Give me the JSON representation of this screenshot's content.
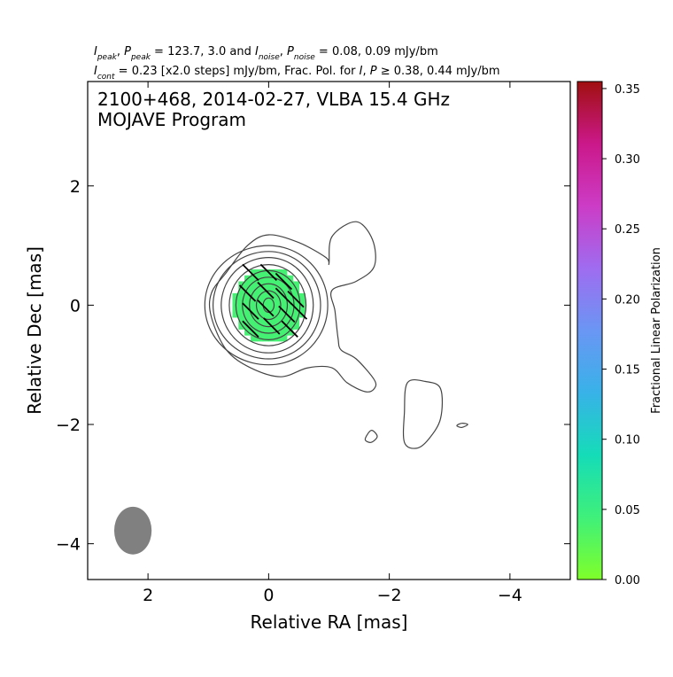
{
  "header": {
    "line1": "I_peak, P_peak = 123.7, 3.0 and I_noise, P_noise = 0.08, 0.09 mJy/bm",
    "line2": "I_cont = 0.23 [x2.0 steps] mJy/bm, Frac. Pol. for I, P ≥ 0.38, 0.44 mJy/bm",
    "i_peak": "123.7",
    "p_peak": "3.0",
    "i_noise": "0.08",
    "p_noise": "0.09",
    "i_cont": "0.23",
    "steps": "x2.0 steps",
    "frac_pol_i": "0.38",
    "frac_pol_p": "0.44",
    "unit": "mJy/bm"
  },
  "chart_data": {
    "type": "contour",
    "title": "2100+468, 2014-02-27, VLBA 15.4 GHz",
    "subtitle": "MOJAVE Program",
    "xlabel": "Relative RA [mas]",
    "ylabel": "Relative Dec [mas]",
    "xlim": [
      3.0,
      -5.0
    ],
    "ylim": [
      -4.6,
      3.75
    ],
    "x_ticks": [
      2,
      0,
      -2,
      -4
    ],
    "y_ticks": [
      2,
      0,
      -2,
      -4
    ],
    "x_tick_labels": [
      "2",
      "0",
      "−2",
      "−4"
    ],
    "y_tick_labels": [
      "2",
      "0",
      "−2",
      "−4"
    ],
    "contour_base": 0.23,
    "contour_step_factor": 2.0,
    "contour_levels_count": 10,
    "beam": {
      "x": 2.25,
      "y": -3.78,
      "major": 0.8,
      "minor": 0.62
    },
    "colorbar": {
      "label": "Fractional Linear Polarization",
      "min": 0.0,
      "max": 0.355,
      "ticks": [
        0.0,
        0.05,
        0.1,
        0.15,
        0.2,
        0.25,
        0.3,
        0.35
      ],
      "tick_labels": [
        "0.00",
        "0.05",
        "0.10",
        "0.15",
        "0.20",
        "0.25",
        "0.30",
        "0.35"
      ],
      "colors": [
        "#7fff2a",
        "#3ff07a",
        "#15dcb8",
        "#38b2e8",
        "#6a96f4",
        "#9f6cf0",
        "#cc3cc6",
        "#cb188a",
        "#a01010"
      ]
    },
    "polarization_fraction": 0.04
  }
}
